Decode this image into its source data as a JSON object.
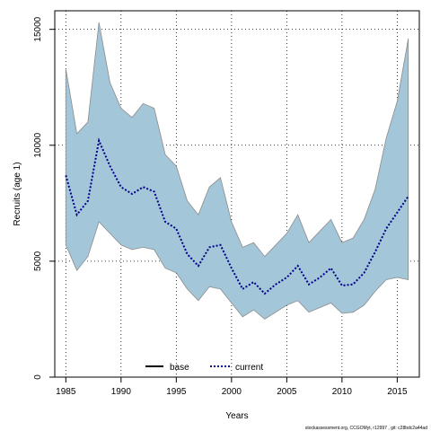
{
  "chart_data": {
    "type": "line",
    "title": "",
    "xlabel": "Years",
    "ylabel": "Recruits (age 1)",
    "xlim": [
      1984,
      2017
    ],
    "ylim": [
      0,
      15800
    ],
    "x_ticks": [
      1985,
      1990,
      1995,
      2000,
      2005,
      2010,
      2015
    ],
    "y_ticks": [
      0,
      5000,
      10000,
      15000
    ],
    "grid": true,
    "legend": {
      "placement": "bottom-center",
      "entries": [
        {
          "label": "base",
          "style": "solid",
          "color": "#000000"
        },
        {
          "label": "current",
          "style": "dotted",
          "color": "#00008b"
        }
      ]
    },
    "x": [
      1985,
      1986,
      1987,
      1988,
      1989,
      1990,
      1991,
      1992,
      1993,
      1994,
      1995,
      1996,
      1997,
      1998,
      1999,
      2000,
      2001,
      2002,
      2003,
      2004,
      2005,
      2006,
      2007,
      2008,
      2009,
      2010,
      2011,
      2012,
      2013,
      2014,
      2015,
      2016
    ],
    "series": [
      {
        "name": "current",
        "style": "dotted",
        "color": "#00008b",
        "values": [
          8700,
          7000,
          7600,
          10200,
          9100,
          8200,
          7900,
          8200,
          8000,
          6700,
          6400,
          5300,
          4800,
          5600,
          5700,
          4700,
          3800,
          4100,
          3600,
          4000,
          4300,
          4800,
          4000,
          4300,
          4700,
          3950,
          4000,
          4500,
          5400,
          6400,
          7100,
          7800
        ],
        "ci_lower": [
          5700,
          4600,
          5200,
          6700,
          6200,
          5700,
          5500,
          5600,
          5500,
          4700,
          4500,
          3800,
          3300,
          3900,
          3800,
          3200,
          2600,
          2900,
          2500,
          2800,
          3100,
          3300,
          2800,
          3000,
          3200,
          2750,
          2800,
          3100,
          3700,
          4200,
          4300,
          4200
        ],
        "ci_upper": [
          13300,
          10500,
          11000,
          15300,
          12700,
          11600,
          11200,
          11800,
          11600,
          9600,
          9100,
          7600,
          7000,
          8200,
          8600,
          6700,
          5600,
          5800,
          5200,
          5700,
          6200,
          7000,
          5800,
          6300,
          6800,
          5800,
          6000,
          6800,
          8100,
          10300,
          11900,
          14600
        ]
      }
    ],
    "colors": {
      "ci_fill": "#a3c6d8",
      "ci_edge": "#8c8c8c",
      "current_line": "#00008b",
      "grid": "#000000"
    },
    "footnote": "stockassessment.org, CCGOMyt, r12997 , git: c28bdc2a44ad"
  }
}
